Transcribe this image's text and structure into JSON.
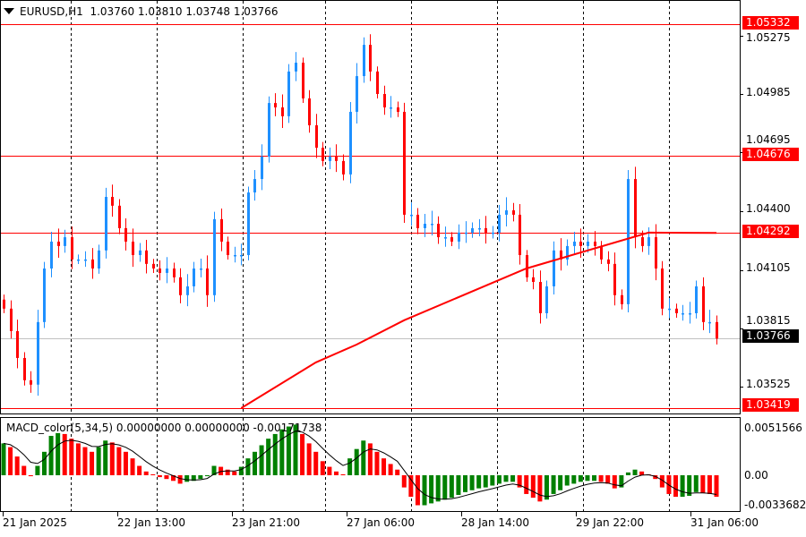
{
  "header": {
    "symbol_timeframe": "EURUSD,H1",
    "open": "1.03760",
    "high": "1.03810",
    "low": "1.03748",
    "close": "1.03766"
  },
  "macd_header": "MACD_color(5,34,5) 0.00000000 0.00000000 -0.00171738",
  "colors": {
    "bull": "#1e90ff",
    "bear": "#ff0000",
    "macd_up": "#008000",
    "macd_down": "#ff0000",
    "level_line": "#ff0000",
    "ma_line": "#ff0000",
    "bid_line": "#c0c0c0"
  },
  "chart_data": [
    {
      "type": "candlestick",
      "title": "EURUSD,H1",
      "y_ticks": [
        "1.05275",
        "1.04985",
        "1.04695",
        "1.04400",
        "1.04105",
        "1.03815",
        "1.03525"
      ],
      "ylim": [
        1.0333,
        1.0546
      ],
      "x_tick_labels": [
        "21 Jan 2025",
        "22 Jan 13:00",
        "23 Jan 21:00",
        "27 Jan 06:00",
        "28 Jan 14:00",
        "29 Jan 22:00",
        "31 Jan 06:00"
      ],
      "grid": "vertical dashed day separators",
      "closes": [
        1.03915,
        1.03803,
        1.03669,
        1.03558,
        1.03536,
        1.03848,
        1.04115,
        1.04249,
        1.04227,
        1.04271,
        1.0416,
        1.0416,
        1.0416,
        1.04115,
        1.04205,
        1.04472,
        1.04428,
        1.04316,
        1.04249,
        1.04182,
        1.04205,
        1.04138,
        1.04115,
        1.04093,
        1.04115,
        1.04071,
        1.03982,
        1.04026,
        1.04115,
        1.04115,
        1.03982,
        1.04361,
        1.04249,
        1.04182,
        1.04182,
        1.04182,
        1.04494,
        1.04561,
        1.04673,
        1.0494,
        1.04918,
        1.04874,
        1.05097,
        1.05141,
        1.04963,
        1.04829,
        1.04717,
        1.04651,
        1.04673,
        1.04651,
        1.04584,
        1.04896,
        1.05074,
        1.0523,
        1.05097,
        1.04985,
        1.04918,
        1.04918,
        1.04896,
        1.04383,
        1.04383,
        1.04316,
        1.04338,
        1.04338,
        1.04271,
        1.04271,
        1.04249,
        1.04294,
        1.04294,
        1.04316,
        1.04316,
        1.04294,
        1.04294,
        1.04383,
        1.04405,
        1.04383,
        1.04182,
        1.04071,
        1.04048,
        1.03892,
        1.04026,
        1.04205,
        1.0416,
        1.04227,
        1.04249,
        1.04227,
        1.04249,
        1.04227,
        1.0416,
        1.04138,
        1.03982,
        1.03937,
        1.04561,
        1.04271,
        1.04227,
        1.04271,
        1.04115,
        1.03915,
        1.03915,
        1.03892,
        1.03892,
        1.03892,
        1.04026,
        1.03848,
        1.03848,
        1.03766
      ],
      "first_open": 1.0396,
      "moving_average": [
        [
          35,
          1.03419
        ],
        [
          46,
          1.03647
        ],
        [
          52,
          1.03736
        ],
        [
          59,
          1.03857
        ],
        [
          77,
          1.04115
        ],
        [
          95,
          1.04294
        ],
        [
          105,
          1.04292
        ]
      ],
      "horizontal_levels": [
        {
          "price": 1.05332,
          "label": "1.05332"
        },
        {
          "price": 1.04676,
          "label": "1.04676"
        },
        {
          "price": 1.04292,
          "label": "1.04292"
        },
        {
          "price": 1.03419,
          "label": "1.03419"
        }
      ],
      "current_price": {
        "price": 1.03766,
        "label": "1.03766"
      }
    },
    {
      "type": "bar",
      "title": "MACD_color(5,34,5)",
      "y_ticks": [
        "0.0051566",
        "0.00",
        "-0.0033682"
      ],
      "ylim": [
        -0.0033682,
        0.0051566
      ],
      "values": [
        0.0034,
        0.003,
        0.002,
        0.001,
        -0.0001,
        0.001,
        0.0025,
        0.0042,
        0.0045,
        0.0044,
        0.0039,
        0.0034,
        0.003,
        0.0025,
        0.003,
        0.0037,
        0.0035,
        0.003,
        0.0025,
        0.0018,
        0.001,
        0.0004,
        0.0001,
        -0.0002,
        -0.0004,
        -0.0006,
        -0.0009,
        -0.0007,
        -0.0006,
        -0.0004,
        -0.0001,
        0.001,
        0.0009,
        0.0006,
        0.0004,
        0.0009,
        0.0018,
        0.0025,
        0.0032,
        0.0039,
        0.0044,
        0.0049,
        0.0052,
        0.0054,
        0.0044,
        0.0034,
        0.0025,
        0.0015,
        0.0009,
        0.0004,
        0.0001,
        0.0018,
        0.0028,
        0.0037,
        0.0034,
        0.0025,
        0.0018,
        0.0012,
        0.0006,
        -0.0013,
        -0.0023,
        -0.0032,
        -0.0032,
        -0.003,
        -0.0028,
        -0.0026,
        -0.0024,
        -0.0021,
        -0.0018,
        -0.0016,
        -0.0014,
        -0.0013,
        -0.0011,
        -0.0009,
        -0.0007,
        -0.0007,
        -0.0013,
        -0.002,
        -0.0024,
        -0.0028,
        -0.0026,
        -0.002,
        -0.0016,
        -0.0011,
        -0.0009,
        -0.0007,
        -0.0006,
        -0.0006,
        -0.0007,
        -0.0009,
        -0.0014,
        -0.0013,
        0.0003,
        0.0006,
        0.0004,
        0.0001,
        -0.0004,
        -0.0013,
        -0.002,
        -0.0023,
        -0.0023,
        -0.0022,
        -0.0018,
        -0.0019,
        -0.002,
        -0.0023
      ]
    }
  ]
}
